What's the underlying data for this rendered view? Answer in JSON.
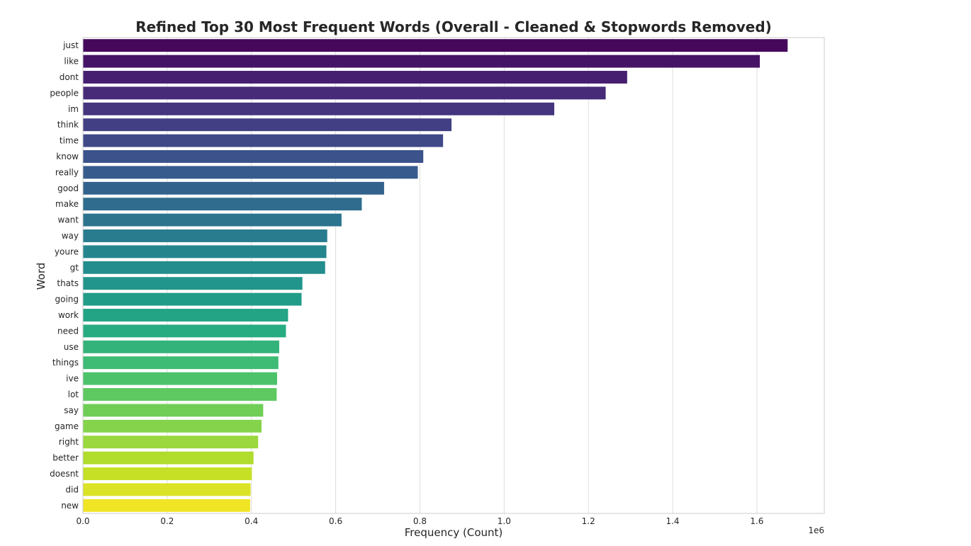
{
  "chart_data": {
    "type": "bar",
    "orientation": "horizontal",
    "title": "Refined Top 30 Most Frequent Words (Overall - Cleaned & Stopwords Removed)",
    "xlabel": "Frequency (Count)",
    "ylabel": "Word",
    "x_offset_label": "1e6",
    "xlim": [
      0,
      1.76
    ],
    "xticks": [
      0.0,
      0.2,
      0.4,
      0.6,
      0.8,
      1.0,
      1.2,
      1.4,
      1.6
    ],
    "xtick_labels": [
      "0.0",
      "0.2",
      "0.4",
      "0.6",
      "0.8",
      "1.0",
      "1.2",
      "1.4",
      "1.6"
    ],
    "grid": true,
    "palette": "viridis",
    "categories": [
      "just",
      "like",
      "dont",
      "people",
      "im",
      "think",
      "time",
      "know",
      "really",
      "good",
      "make",
      "want",
      "way",
      "youre",
      "gt",
      "thats",
      "going",
      "work",
      "need",
      "use",
      "things",
      "ive",
      "lot",
      "say",
      "game",
      "right",
      "better",
      "doesnt",
      "did",
      "new"
    ],
    "values": [
      1.673,
      1.607,
      1.292,
      1.241,
      1.119,
      0.875,
      0.855,
      0.808,
      0.795,
      0.715,
      0.662,
      0.614,
      0.58,
      0.578,
      0.575,
      0.521,
      0.519,
      0.487,
      0.482,
      0.466,
      0.464,
      0.461,
      0.46,
      0.428,
      0.424,
      0.416,
      0.405,
      0.401,
      0.398,
      0.397
    ]
  }
}
